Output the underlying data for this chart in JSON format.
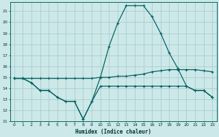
{
  "xlabel": "Humidex (Indice chaleur)",
  "bg_color": "#cce8e8",
  "grid_color": "#aacccc",
  "line_color": "#006060",
  "xlim": [
    -0.5,
    23.5
  ],
  "ylim": [
    11,
    21.8
  ],
  "xticks": [
    0,
    1,
    2,
    3,
    4,
    5,
    6,
    7,
    8,
    9,
    10,
    11,
    12,
    13,
    14,
    15,
    16,
    17,
    18,
    19,
    20,
    21,
    22,
    23
  ],
  "yticks": [
    11,
    12,
    13,
    14,
    15,
    16,
    17,
    18,
    19,
    20,
    21
  ],
  "line1_x": [
    0,
    1,
    2,
    3,
    4,
    5,
    6,
    7,
    8,
    9,
    10,
    11,
    12,
    13,
    14,
    15,
    16,
    17,
    18,
    19,
    20,
    21,
    22,
    23
  ],
  "line1_y": [
    14.9,
    14.9,
    14.9,
    14.9,
    14.9,
    14.9,
    14.9,
    14.9,
    14.9,
    14.9,
    15.0,
    15.0,
    15.1,
    15.1,
    15.2,
    15.3,
    15.5,
    15.6,
    15.7,
    15.7,
    15.7,
    15.7,
    15.6,
    15.5
  ],
  "line2_x": [
    0,
    1,
    2,
    3,
    4,
    5,
    6,
    7,
    8,
    9,
    10,
    11,
    12,
    13,
    14,
    15,
    16,
    17,
    18,
    19,
    20,
    21,
    22,
    23
  ],
  "line2_y": [
    14.9,
    14.9,
    14.5,
    13.8,
    13.8,
    13.2,
    12.8,
    12.8,
    11.2,
    12.8,
    14.2,
    14.2,
    14.2,
    14.2,
    14.2,
    14.2,
    14.2,
    14.2,
    14.2,
    14.2,
    14.2,
    13.8,
    13.8,
    13.2
  ],
  "line3_x": [
    0,
    1,
    2,
    3,
    4,
    5,
    6,
    7,
    8,
    9,
    10,
    11,
    12,
    13,
    14,
    15,
    16,
    17,
    18,
    19,
    20,
    21,
    22,
    23
  ],
  "line3_y": [
    14.9,
    14.9,
    14.5,
    13.8,
    13.8,
    13.2,
    12.8,
    12.8,
    11.2,
    12.8,
    15.0,
    17.8,
    19.9,
    21.5,
    21.5,
    21.5,
    20.5,
    19.0,
    17.2,
    15.8,
    14.2,
    13.8,
    13.8,
    13.2
  ]
}
